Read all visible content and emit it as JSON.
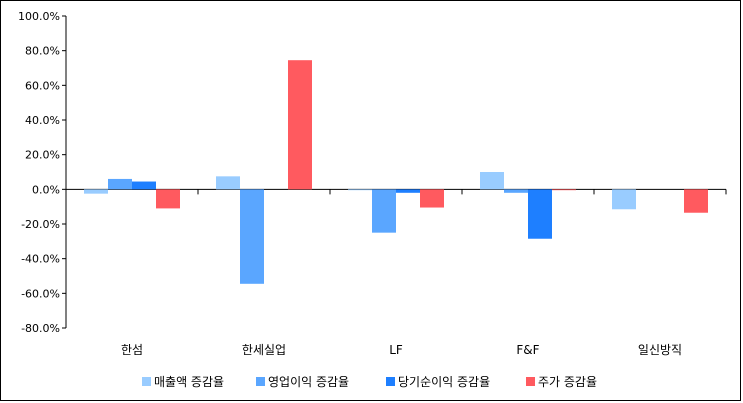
{
  "chart_data": {
    "type": "bar",
    "title": "",
    "xlabel": "",
    "ylabel": "",
    "ylim": [
      -80,
      100
    ],
    "y_tick_step": 20,
    "y_tick_labels": [
      "100.0%",
      "80.0%",
      "60.0%",
      "40.0%",
      "20.0%",
      "0.0%",
      "-20.0%",
      "-40.0%",
      "-60.0%",
      "-80.0%"
    ],
    "categories": [
      "한섬",
      "한세실업",
      "LF",
      "F&F",
      "일신방직"
    ],
    "series": [
      {
        "name": "매출액 증감율",
        "color": "#99CCFF",
        "values": [
          -2.5,
          7.5,
          -0.5,
          10.0,
          -11.5
        ]
      },
      {
        "name": "영업이익 증감율",
        "color": "#5AA6FF",
        "values": [
          6.0,
          -54.5,
          -25.0,
          -2.0,
          0
        ]
      },
      {
        "name": "당기순이익 증감율",
        "color": "#1E7FFF",
        "values": [
          4.5,
          0,
          -2.0,
          -28.5,
          0
        ]
      },
      {
        "name": "주가 증감율",
        "color": "#FF5A5F",
        "values": [
          -11.0,
          74.5,
          -10.5,
          -0.5,
          -13.5
        ]
      }
    ],
    "legend_position": "bottom"
  }
}
